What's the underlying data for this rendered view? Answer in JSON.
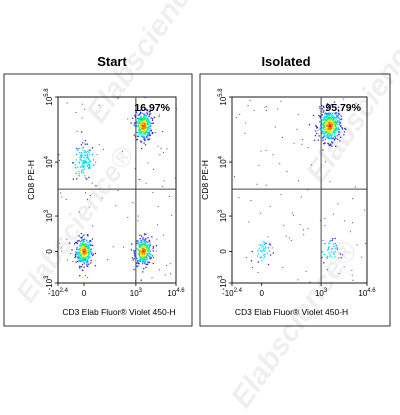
{
  "watermark": "Elabscience®",
  "chart_data": [
    {
      "type": "scatter",
      "title": "Start",
      "xlabel": "CD3 Elab Fluor® Violet 450-H",
      "ylabel": "CD8 PE-H",
      "x_scale": "biexponential",
      "y_scale": "biexponential",
      "x_ticks": [
        "-10^2.4",
        "0",
        "10^3",
        "10^4.6"
      ],
      "y_ticks": [
        "-10^3",
        "0",
        "10^3",
        "10^4",
        "10^5.8"
      ],
      "quadrant_gate": {
        "x": "10^3",
        "y": "10^3.5"
      },
      "quadrant_label": "16.97%",
      "quadrant_label_position": "top-right",
      "populations": [
        {
          "name": "CD3- CD8-",
          "x": 0,
          "y": 0,
          "density": "high"
        },
        {
          "name": "CD3- CD8+",
          "x": 0,
          "y": 10000,
          "density": "medium"
        },
        {
          "name": "CD3+ CD8-",
          "x": 2000,
          "y": 0,
          "density": "high"
        },
        {
          "name": "CD3+ CD8+",
          "x": 2000,
          "y": 100000,
          "density": "high"
        }
      ]
    },
    {
      "type": "scatter",
      "title": "Isolated",
      "xlabel": "CD3 Elab Fluor® Violet 450-H",
      "ylabel": "CD8 PE-H",
      "x_scale": "biexponential",
      "y_scale": "biexponential",
      "x_ticks": [
        "-10^2.4",
        "0",
        "10^3",
        "10^4.6"
      ],
      "y_ticks": [
        "-10^3",
        "0",
        "10^3",
        "10^4",
        "10^5.8"
      ],
      "quadrant_gate": {
        "x": "10^3",
        "y": "10^3.5"
      },
      "quadrant_label": "95.79%",
      "quadrant_label_position": "top-right",
      "populations": [
        {
          "name": "CD3+ CD8+",
          "x": 2000,
          "y": 100000,
          "density": "very high"
        },
        {
          "name": "CD3- CD8-",
          "x": 0,
          "y": 0,
          "density": "low"
        },
        {
          "name": "CD3+ CD8-",
          "x": 2000,
          "y": 0,
          "density": "low"
        }
      ]
    }
  ]
}
